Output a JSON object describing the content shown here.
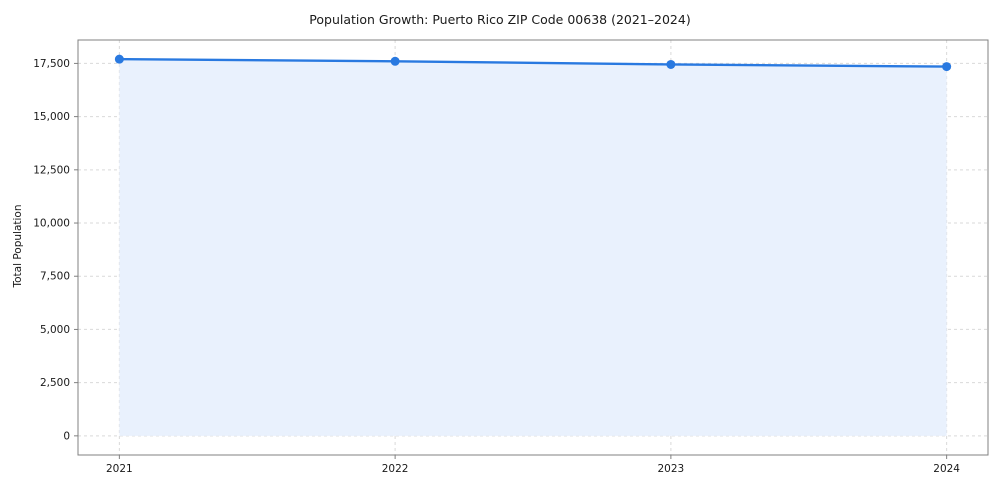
{
  "chart_data": {
    "type": "area",
    "title": "Population Growth: Puerto Rico ZIP Code 00638 (2021–2024)",
    "xlabel": "",
    "ylabel": "Total Population",
    "x": [
      2021,
      2022,
      2023,
      2024
    ],
    "categories": [
      "2021",
      "2022",
      "2023",
      "2024"
    ],
    "series": [
      {
        "name": "Total Population",
        "values": [
          17700,
          17600,
          17450,
          17350
        ]
      }
    ],
    "ylim": [
      0,
      17700
    ],
    "yticks": [
      0,
      2500,
      5000,
      7500,
      10000,
      12500,
      15000,
      17500
    ],
    "grid": true,
    "legend_position": "none",
    "colors": {
      "line": "#2979e0",
      "marker": "#2979e0",
      "fill": "#e9f1fd",
      "grid": "#d9d9d9",
      "spine": "#808080",
      "text": "#1a1a1a",
      "background": "#ffffff"
    }
  }
}
